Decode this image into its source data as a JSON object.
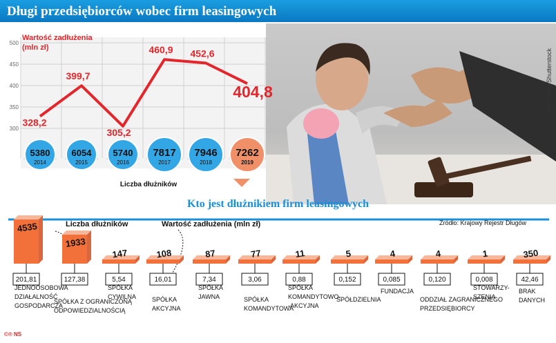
{
  "title": "Długi przedsiębiorców wobec firm leasingowych",
  "photo_credit": "fot. vchal/Shutterstock",
  "section2_title": "Kto jest dłużnikiem firm leasingowych",
  "source": "Źródło: Krajowy Rejestr Długów",
  "label_count": "Liczba dłużników",
  "label_value": "Wartość zadłużenia (mln zł)",
  "footer": "©℗ NS",
  "colors": {
    "accent_red": "#e3262b",
    "blue": "#1a8fd6",
    "salmon": "#ef9068",
    "orange": "#f2703a"
  },
  "chart_data": [
    {
      "type": "line",
      "title": "Wartość zadłużenia (mln zł)",
      "x": [
        "2014",
        "2015",
        "2016",
        "2017",
        "2018",
        "2019"
      ],
      "values": [
        328.2,
        399.7,
        305.2,
        460.9,
        452.6,
        404.8
      ],
      "value_labels": [
        "328,2",
        "399,7",
        "305,2",
        "460,9",
        "452,6",
        "404,8"
      ],
      "yticks": [
        "500",
        "450",
        "400",
        "350",
        "300"
      ],
      "ylim": [
        250,
        520
      ],
      "grid": true
    },
    {
      "type": "bar",
      "title": "Liczba dłużników",
      "categories": [
        "2014",
        "2015",
        "2016",
        "2017",
        "2018",
        "2019"
      ],
      "values": [
        "5380",
        "6054",
        "5740",
        "7817",
        "7946",
        "7262"
      ]
    },
    {
      "type": "bar",
      "title": "Kto jest dłużnikiem firm leasingowych",
      "series": [
        {
          "name": "Liczba dłużników",
          "values": [
            4535,
            1933,
            147,
            108,
            87,
            77,
            11,
            5,
            4,
            4,
            1,
            350
          ]
        },
        {
          "name": "Wartość zadłużenia (mln zł)",
          "values": [
            "201,81",
            "127,38",
            "5,54",
            "16,01",
            "7,34",
            "3,06",
            "0,88",
            "0,152",
            "0,085",
            "0,120",
            "0,008",
            "42,46"
          ]
        }
      ],
      "categories": [
        [
          "JEDNOOSOBOWA",
          "DZIAŁALNOŚĆ",
          "GOSPODARCZA"
        ],
        [
          "SPÓŁKA Z OGRANICZONĄ",
          "ODPOWIEDZIALNOŚCIĄ"
        ],
        [
          "SPÓŁKA",
          "CYWILNA"
        ],
        [
          "SPÓŁKA",
          "AKCYJNA"
        ],
        [
          "SPÓŁKA",
          "JAWNA"
        ],
        [
          "SPÓŁKA",
          "KOMANDYTOWA"
        ],
        [
          "SPÓŁKA",
          "KOMANDYTOWO-",
          "-AKCYJNA"
        ],
        [
          "SPÓŁDZIELNIA"
        ],
        [
          "FUNDACJA"
        ],
        [
          "ODDZIAŁ ZAGRANICZNEGO",
          "PRZEDSIĘBIORCY"
        ],
        [
          "STOWARZY-",
          "SZENIA"
        ],
        [
          "BRAK",
          "DANYCH"
        ]
      ]
    }
  ]
}
